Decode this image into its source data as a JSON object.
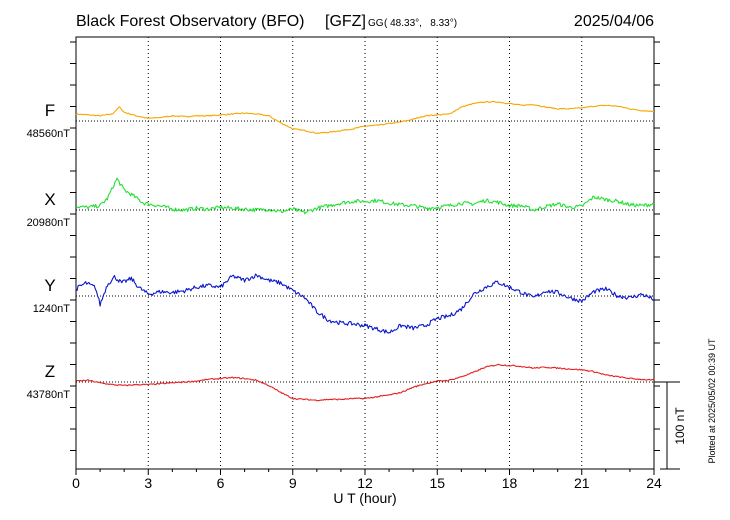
{
  "header": {
    "title": "Black Forest Observatory (BFO)",
    "institute": "[GFZ]",
    "coords_prefix": "GG",
    "coords": "( 48.33°,   8.33°)",
    "date": "2025/04/06"
  },
  "footer": {
    "plotted": "Plotted at 2025/05/02 00:39 UT"
  },
  "chart_data": {
    "type": "line",
    "title": "Black Forest Observatory (BFO)",
    "xlabel": "U T (hour)",
    "ylabel": "",
    "xlim": [
      0,
      24
    ],
    "xticks": [
      0,
      3,
      6,
      9,
      12,
      15,
      18,
      21,
      24
    ],
    "grid": true,
    "scale_bar": {
      "label": "100 nT",
      "value_nT": 100
    },
    "series": [
      {
        "name": "F",
        "baseline_label": "48560nT",
        "color": "#f5a800",
        "baseline": 48560,
        "x": [
          0,
          0.5,
          1,
          1.5,
          1.8,
          2,
          2.5,
          3,
          3.5,
          4,
          4.5,
          5,
          5.5,
          6,
          6.5,
          7,
          7.5,
          8,
          8.5,
          9,
          9.5,
          10,
          10.5,
          11,
          11.5,
          12,
          12.5,
          13,
          13.5,
          14,
          14.5,
          15,
          15.5,
          16,
          16.5,
          17,
          17.5,
          18,
          18.5,
          19,
          19.5,
          20,
          20.5,
          21,
          21.5,
          22,
          22.5,
          23,
          23.5,
          24
        ],
        "values": [
          48568,
          48567,
          48566,
          48568,
          48576,
          48570,
          48566,
          48563,
          48564,
          48566,
          48565,
          48566,
          48566,
          48567,
          48568,
          48569,
          48568,
          48566,
          48558,
          48551,
          48549,
          48546,
          48547,
          48549,
          48551,
          48554,
          48555,
          48557,
          48559,
          48562,
          48566,
          48567,
          48568,
          48576,
          48580,
          48582,
          48582,
          48580,
          48578,
          48579,
          48576,
          48574,
          48574,
          48575,
          48577,
          48578,
          48577,
          48574,
          48572,
          48571
        ]
      },
      {
        "name": "X",
        "baseline_label": "20980nT",
        "color": "#22e033",
        "baseline": 20980,
        "x": [
          0,
          0.5,
          1,
          1.3,
          1.7,
          2,
          2.4,
          2.8,
          3.2,
          3.6,
          4,
          4.5,
          5,
          5.5,
          6,
          6.5,
          7,
          7.5,
          8,
          8.5,
          9,
          9.5,
          10,
          10.5,
          11,
          11.5,
          12,
          12.5,
          13,
          13.5,
          14,
          14.5,
          15,
          15.5,
          16,
          16.5,
          17,
          17.5,
          18,
          18.5,
          19,
          19.5,
          20,
          20.5,
          21,
          21.5,
          22,
          22.5,
          23,
          23.5,
          24
        ],
        "values": [
          20984,
          20983,
          20985,
          20993,
          21016,
          21003,
          20996,
          20988,
          20986,
          20984,
          20981,
          20980,
          20982,
          20981,
          20983,
          20982,
          20981,
          20980,
          20981,
          20978,
          20981,
          20977,
          20982,
          20985,
          20988,
          20990,
          20990,
          20991,
          20988,
          20986,
          20985,
          20982,
          20983,
          20985,
          20988,
          20987,
          20991,
          20989,
          20985,
          20985,
          20980,
          20984,
          20987,
          20983,
          20984,
          20995,
          20992,
          20990,
          20986,
          20985,
          20987
        ]
      },
      {
        "name": "Y",
        "baseline_label": "1240nT",
        "color": "#0b17cc",
        "baseline": 1240,
        "x": [
          0,
          0.4,
          0.8,
          1,
          1.3,
          1.6,
          1.9,
          2.3,
          2.6,
          3,
          3.5,
          4,
          4.5,
          5,
          5.5,
          6,
          6.5,
          7,
          7.5,
          8,
          8.5,
          9,
          9.5,
          10,
          10.5,
          11,
          11.5,
          12,
          12.5,
          13,
          13.5,
          14,
          14.5,
          15,
          15.5,
          16,
          16.5,
          17,
          17.5,
          18,
          18.5,
          19,
          19.5,
          20,
          20.5,
          21,
          21.5,
          22,
          22.5,
          23,
          23.5,
          24
        ],
        "values": [
          1248,
          1255,
          1250,
          1230,
          1253,
          1262,
          1255,
          1260,
          1250,
          1242,
          1245,
          1244,
          1246,
          1250,
          1252,
          1250,
          1263,
          1258,
          1264,
          1258,
          1255,
          1246,
          1238,
          1222,
          1212,
          1209,
          1208,
          1206,
          1202,
          1198,
          1206,
          1203,
          1206,
          1214,
          1217,
          1225,
          1242,
          1250,
          1256,
          1250,
          1244,
          1238,
          1246,
          1244,
          1238,
          1234,
          1245,
          1248,
          1240,
          1238,
          1242,
          1236
        ]
      },
      {
        "name": "Z",
        "baseline_label": "43780nT",
        "color": "#e62020",
        "baseline": 43780,
        "x": [
          0,
          0.5,
          1,
          1.5,
          2,
          2.5,
          3,
          3.5,
          4,
          4.5,
          5,
          5.5,
          6,
          6.5,
          7,
          7.5,
          8,
          8.5,
          9,
          9.5,
          10,
          10.5,
          11,
          11.5,
          12,
          12.5,
          13,
          13.5,
          14,
          14.5,
          15,
          15.5,
          16,
          16.5,
          17,
          17.5,
          18,
          18.5,
          19,
          19.5,
          20,
          20.5,
          21,
          21.5,
          22,
          22.5,
          23,
          23.5,
          24
        ],
        "values": [
          43781,
          43782,
          43779,
          43777,
          43776,
          43777,
          43777,
          43778,
          43779,
          43780,
          43781,
          43783,
          43784,
          43785,
          43784,
          43782,
          43776,
          43768,
          43761,
          43760,
          43759,
          43760,
          43760,
          43761,
          43761,
          43763,
          43765,
          43768,
          43774,
          43778,
          43781,
          43782,
          43786,
          43791,
          43797,
          43800,
          43799,
          43798,
          43796,
          43797,
          43796,
          43795,
          43794,
          43792,
          43788,
          43786,
          43784,
          43783,
          43782
        ]
      }
    ]
  }
}
